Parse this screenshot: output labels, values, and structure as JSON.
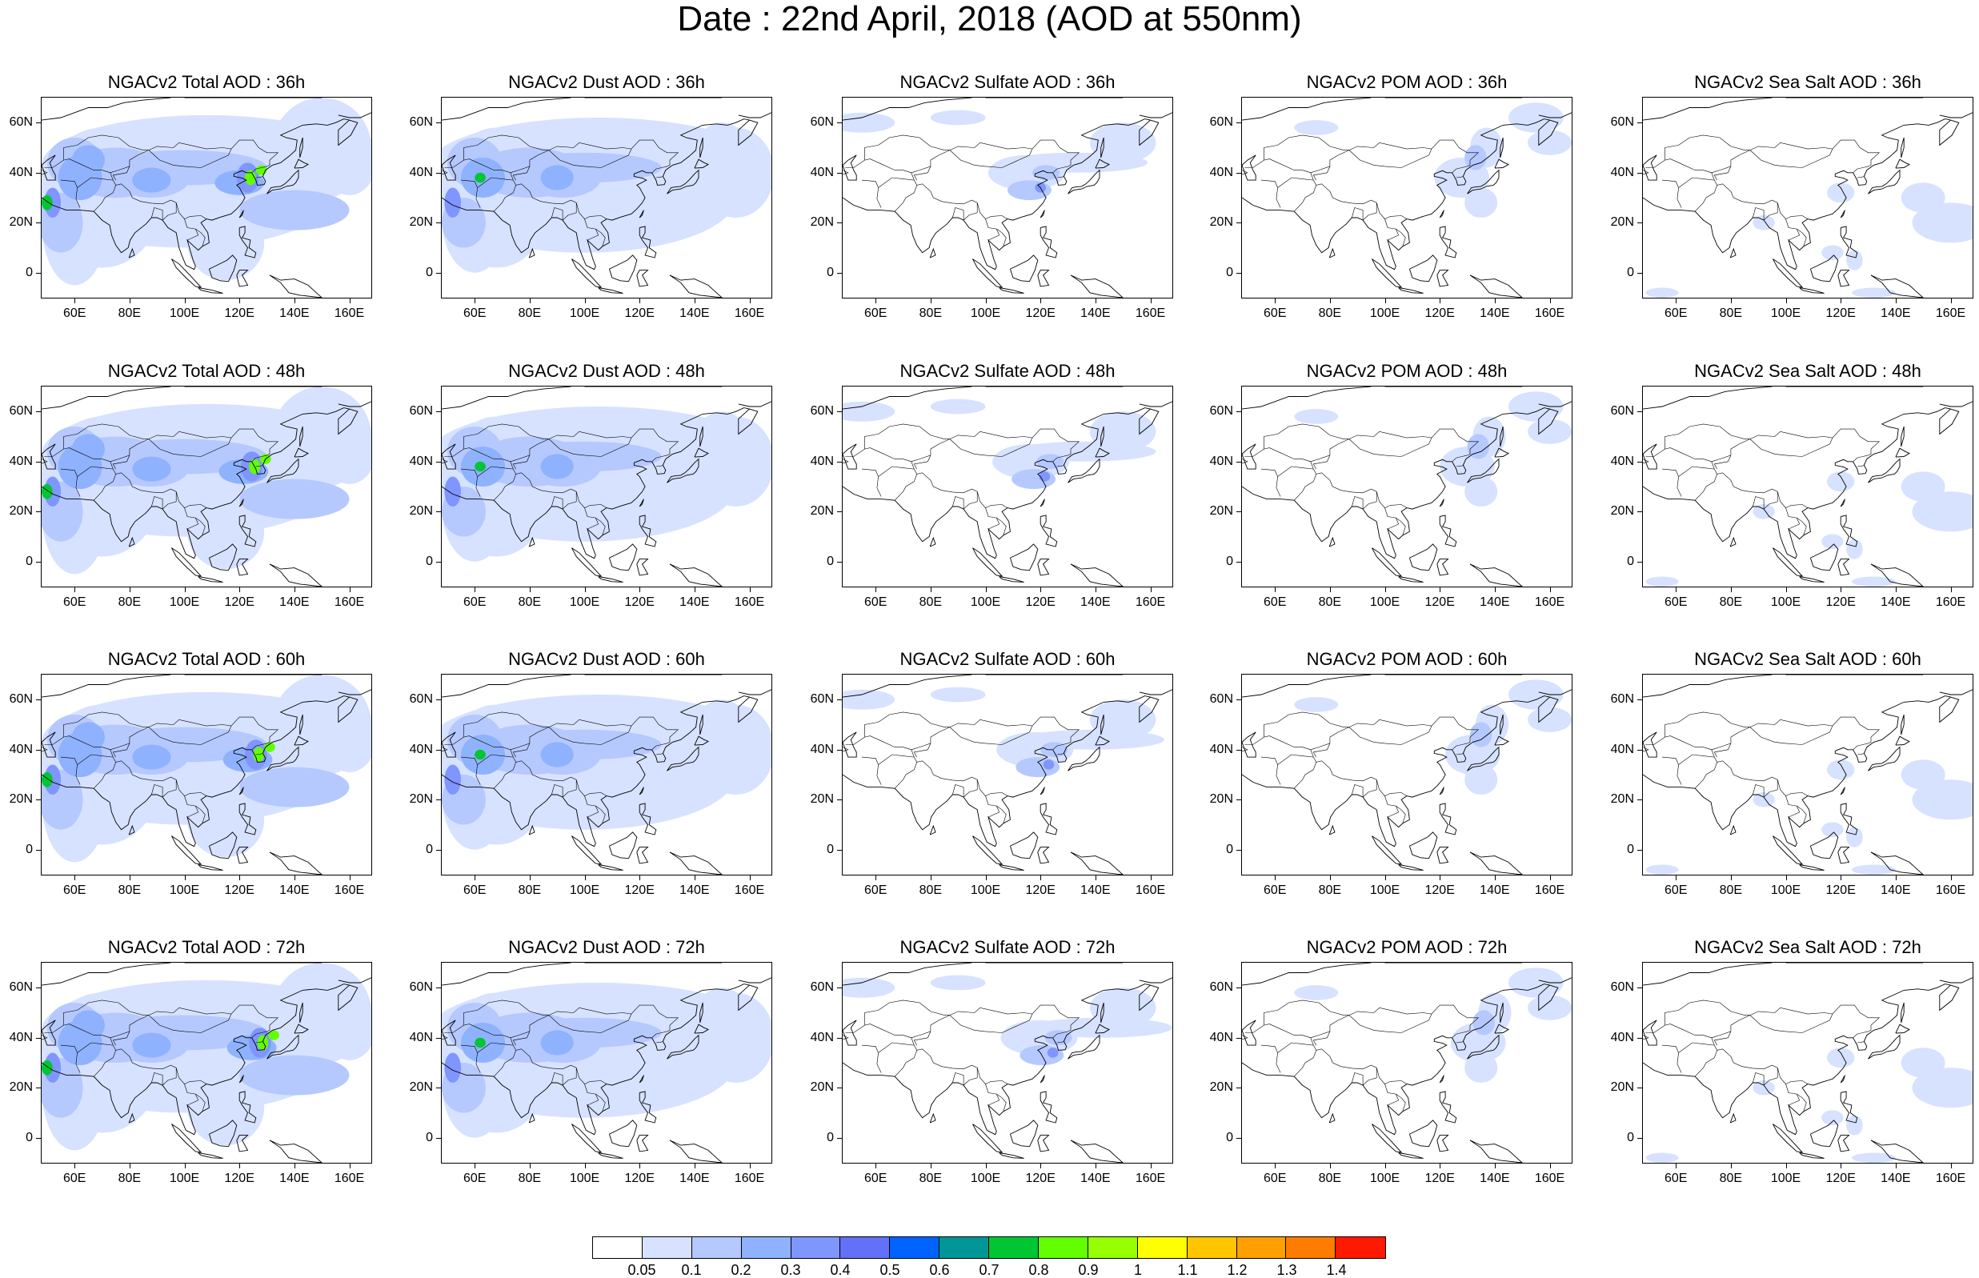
{
  "figure": {
    "title": "Date : 22nd April, 2018 (AOD at 550nm)"
  },
  "x_ticks": [
    "60E",
    "80E",
    "100E",
    "120E",
    "140E",
    "160E"
  ],
  "y_ticks": [
    "60N",
    "40N",
    "20N",
    "0"
  ],
  "map_extent": {
    "lon": [
      48,
      168
    ],
    "lat": [
      -10,
      70
    ]
  },
  "rows": [
    {
      "lead": "36h",
      "titles": [
        "NGACv2 Total AOD : 36h",
        "NGACv2 Dust AOD : 36h",
        "NGACv2 Sulfate AOD : 36h",
        "NGACv2 POM AOD : 36h",
        "NGACv2 Sea Salt AOD : 36h"
      ]
    },
    {
      "lead": "48h",
      "titles": [
        "NGACv2 Total AOD : 48h",
        "NGACv2 Dust AOD : 48h",
        "NGACv2 Sulfate AOD : 48h",
        "NGACv2 POM AOD : 48h",
        "NGACv2 Sea Salt AOD : 48h"
      ]
    },
    {
      "lead": "60h",
      "titles": [
        "NGACv2 Total AOD : 60h",
        "NGACv2 Dust AOD : 60h",
        "NGACv2 Sulfate AOD : 60h",
        "NGACv2 POM AOD : 60h",
        "NGACv2 Sea Salt AOD : 60h"
      ]
    },
    {
      "lead": "72h",
      "titles": [
        "NGACv2 Total AOD : 72h",
        "NGACv2 Dust AOD : 72h",
        "NGACv2 Sulfate AOD : 72h",
        "NGACv2 POM AOD : 72h",
        "NGACv2 Sea Salt  AOD : 72h"
      ]
    }
  ],
  "species": [
    "total",
    "dust",
    "sulfate",
    "pom",
    "seasalt"
  ],
  "colorbar": {
    "labels": [
      "0.05",
      "0.1",
      "0.2",
      "0.3",
      "0.4",
      "0.5",
      "0.6",
      "0.7",
      "0.8",
      "0.9",
      "1",
      "1.1",
      "1.2",
      "1.3",
      "1.4"
    ],
    "colors": [
      "#ffffff",
      "#d6e2ff",
      "#b5c9ff",
      "#8fb2ff",
      "#7f96ff",
      "#6370f8",
      "#0063ff",
      "#009696",
      "#00c633",
      "#63ff00",
      "#96ff00",
      "#ffff00",
      "#ffc600",
      "#ffa000",
      "#ff7c00",
      "#ff1900"
    ]
  }
}
